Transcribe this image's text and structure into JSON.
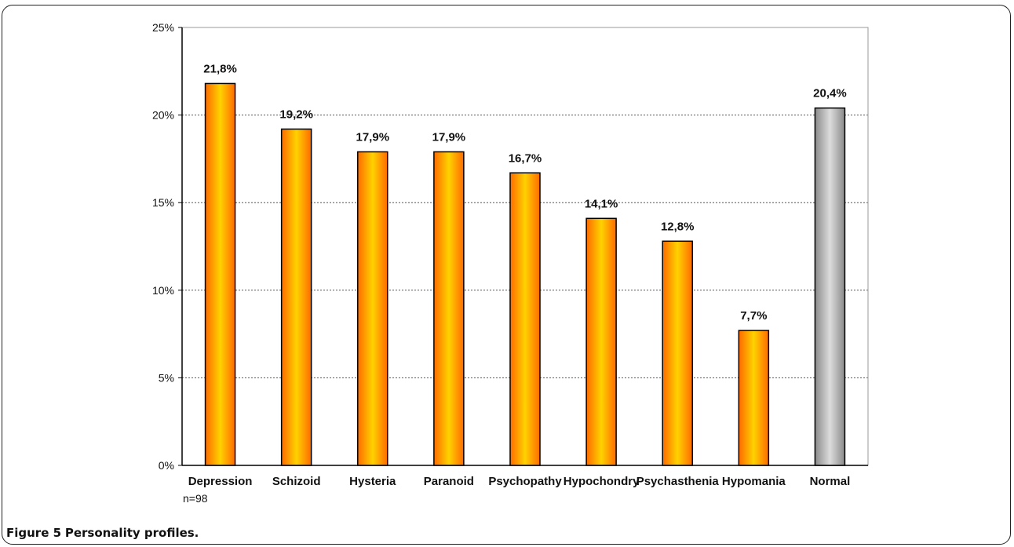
{
  "figure": {
    "label": "Figure 5",
    "caption": "Personality profiles."
  },
  "note": "n=98",
  "chart_data": {
    "type": "bar",
    "categories": [
      "Depression",
      "Schizoid",
      "Hysteria",
      "Paranoid",
      "Psychopathy",
      "Hypochondry",
      "Psychasthenia",
      "Hypomania",
      "Normal"
    ],
    "values": [
      21.8,
      19.2,
      17.9,
      17.9,
      16.7,
      14.1,
      12.8,
      7.7,
      20.4
    ],
    "value_labels": [
      "21,8%",
      "19,2%",
      "17,9%",
      "17,9%",
      "16,7%",
      "14,1%",
      "12,8%",
      "7,7%",
      "20,4%"
    ],
    "bar_styles": [
      "orange",
      "orange",
      "orange",
      "orange",
      "orange",
      "orange",
      "orange",
      "orange",
      "gray"
    ],
    "ylim": [
      0,
      25
    ],
    "yticks": [
      0,
      5,
      10,
      15,
      20,
      25
    ],
    "ytick_labels": [
      "0%",
      "5%",
      "10%",
      "15%",
      "20%",
      "25%"
    ],
    "grid": true,
    "legend": "none",
    "colors": {
      "orange_edge": "#ff6a00",
      "orange_center": "#ffd200",
      "gray_edge": "#8a8a8a",
      "gray_center": "#dcdcdc",
      "bar_outline": "#000000"
    }
  }
}
